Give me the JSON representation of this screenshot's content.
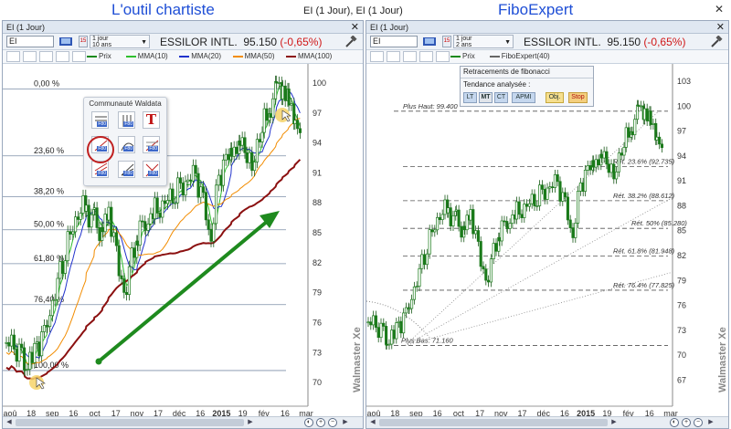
{
  "page": {
    "left_headline": "L'outil chartiste",
    "right_headline": "FiboExpert",
    "window_title": "EI (1 Jour), EI (1 Jour)",
    "close_glyph": "✕"
  },
  "left_panel": {
    "title": "EI (1 Jour)",
    "symbol_value": "EI",
    "period_line1": "1 jour",
    "period_line2": "10 ans",
    "calendar_label": "15",
    "instrument": "ESSILOR INTL.",
    "price": "95.150",
    "change": "(-0,65%)",
    "legend": [
      {
        "label": "Prix",
        "color": "#1a8a1a"
      },
      {
        "label": "MMA(10)",
        "color": "#2fbf2f"
      },
      {
        "label": "MMA(20)",
        "color": "#2233cc"
      },
      {
        "label": "MMA(50)",
        "color": "#f28c00"
      },
      {
        "label": "MMA(100)",
        "color": "#8b1010"
      }
    ],
    "popup_title": "Communauté Waldata",
    "popup_tag": "F80",
    "popup_text_tool": "T",
    "fib_levels": [
      "0,00 %",
      "23,60 %",
      "38,20 %",
      "50,00 %",
      "61,80 %",
      "76,40 %",
      "100,00 %"
    ],
    "y_ticks": [
      "100",
      "97",
      "94",
      "91",
      "88",
      "85",
      "82",
      "79",
      "76",
      "73",
      "70"
    ],
    "x_ticks": [
      "aoû",
      "18",
      "sep",
      "16",
      "oct",
      "17",
      "nov",
      "17",
      "déc",
      "16",
      "2015",
      "19",
      "fév",
      "16",
      "mar"
    ],
    "watermark": "Walmaster Xe"
  },
  "right_panel": {
    "title": "EI (1 Jour)",
    "symbol_value": "EI",
    "period_line1": "1 jour",
    "period_line2": "2 ans",
    "calendar_label": "15",
    "instrument": "ESSILOR INTL.",
    "price": "95.150",
    "change": "(-0,65%)",
    "legend": [
      {
        "label": "Prix",
        "color": "#1a8a1a"
      },
      {
        "label": "FiboExpert(40)",
        "color": "#666666"
      }
    ],
    "fibo_box": {
      "header": "Retracements de fibonacci",
      "trend_label": "Tendance analysée :",
      "buttons": [
        "LT",
        "MT",
        "CT",
        "APMI"
      ],
      "obj": "Obj.",
      "stop": "Stop"
    },
    "annotations": {
      "plus_haut": "Plus Haut: 99.400",
      "plus_bas": "Plus Bas: 71.160",
      "ret_236": "Rét. 23.6% (92.735)",
      "ret_382": "Rét. 38.2% (88.612)",
      "ret_50": "Rét. 50% (85.280)",
      "ret_618": "Rét. 61.8% (81.948)",
      "ret_764": "Rét. 76.4% (77.825)"
    },
    "y_ticks": [
      "103",
      "100",
      "97",
      "94",
      "91",
      "88",
      "85",
      "82",
      "79",
      "76",
      "73",
      "70",
      "67"
    ],
    "x_ticks": [
      "aoû",
      "18",
      "sep",
      "16",
      "oct",
      "17",
      "nov",
      "17",
      "déc",
      "16",
      "2015",
      "19",
      "fév",
      "16",
      "mar"
    ],
    "watermark": "Walmaster Xe"
  },
  "colors": {
    "headline": "#1f4fd6",
    "down": "#d01818",
    "candle": "#1a7a1a",
    "arrow": "#1e8a1e"
  }
}
